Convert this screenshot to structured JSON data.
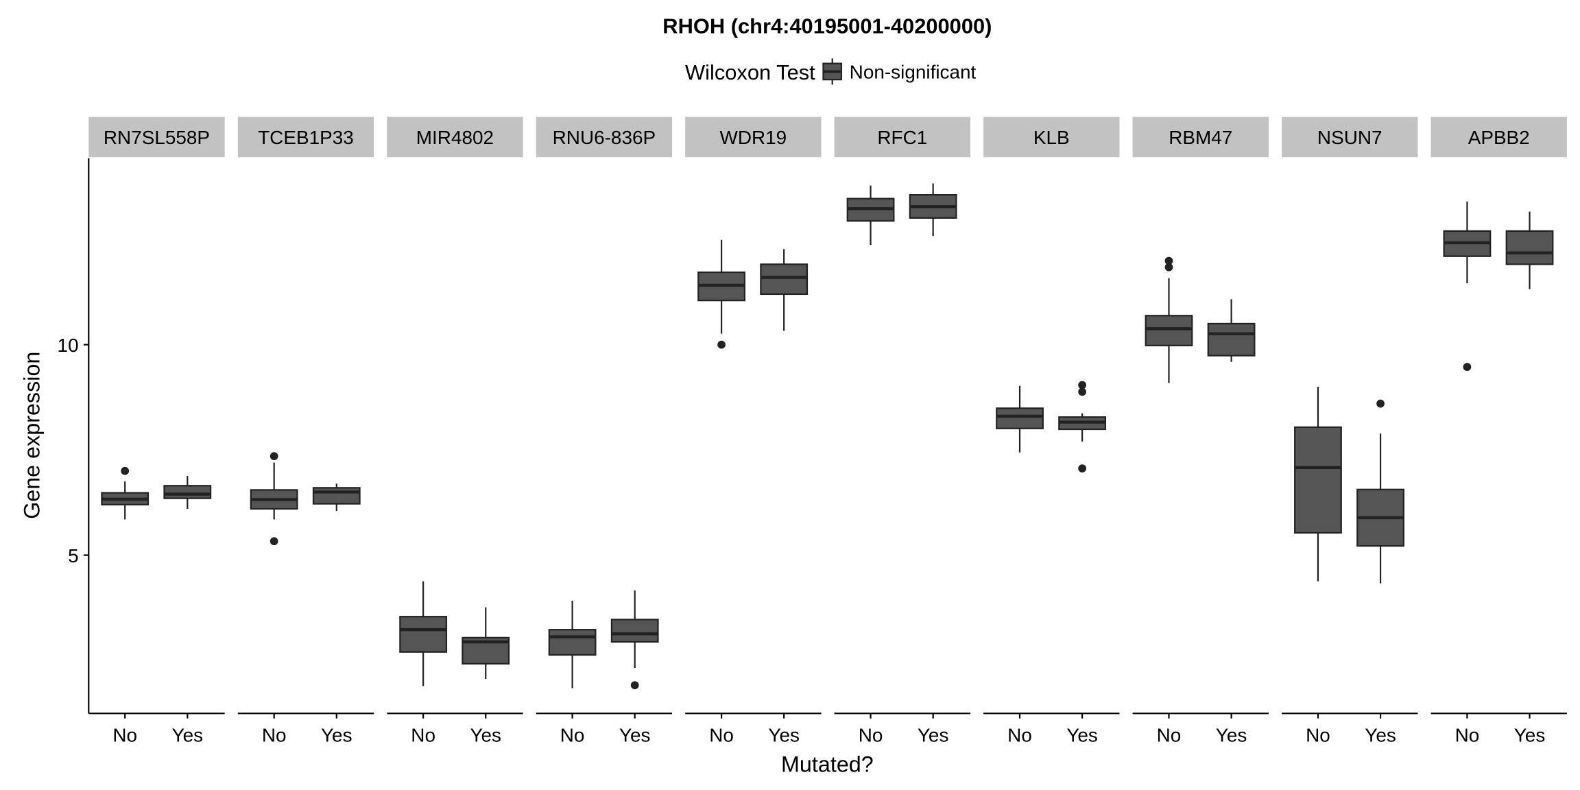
{
  "chart_data": {
    "type": "boxplot",
    "title": "RHOH (chr4:40195001-40200000)",
    "xlabel": "Mutated?",
    "ylabel": "Gene expression",
    "yticks": [
      5,
      10
    ],
    "ylim": [
      1.24,
      14.43
    ],
    "legend": {
      "title": "Wilcoxon Test",
      "entries": [
        "Non-significant"
      ],
      "placement": "top"
    },
    "categories": [
      "No",
      "Yes"
    ],
    "colors": {
      "box_fill": "#555555",
      "box_stroke": "#222222",
      "strip_bg": "#c2c2c2"
    },
    "panels": [
      {
        "label": "RN7SL558P",
        "boxes": [
          {
            "x": "No",
            "lower": 5.85,
            "q1": 6.2,
            "median": 6.33,
            "q3": 6.48,
            "upper": 6.75,
            "outliers": [
              7.0
            ]
          },
          {
            "x": "Yes",
            "lower": 6.1,
            "q1": 6.35,
            "median": 6.45,
            "q3": 6.65,
            "upper": 6.88,
            "outliers": []
          }
        ]
      },
      {
        "label": "TCEB1P33",
        "boxes": [
          {
            "x": "No",
            "lower": 5.85,
            "q1": 6.1,
            "median": 6.32,
            "q3": 6.55,
            "upper": 7.2,
            "outliers": [
              7.35,
              5.33
            ]
          },
          {
            "x": "Yes",
            "lower": 6.05,
            "q1": 6.22,
            "median": 6.5,
            "q3": 6.6,
            "upper": 6.7,
            "outliers": []
          }
        ]
      },
      {
        "label": "MIR4802",
        "boxes": [
          {
            "x": "No",
            "lower": 1.89,
            "q1": 2.7,
            "median": 3.23,
            "q3": 3.54,
            "upper": 4.38,
            "outliers": []
          },
          {
            "x": "Yes",
            "lower": 2.06,
            "q1": 2.42,
            "median": 2.94,
            "q3": 3.04,
            "upper": 3.76,
            "outliers": []
          }
        ]
      },
      {
        "label": "RNU6-836P",
        "boxes": [
          {
            "x": "No",
            "lower": 1.84,
            "q1": 2.63,
            "median": 3.06,
            "q3": 3.23,
            "upper": 3.92,
            "outliers": []
          },
          {
            "x": "Yes",
            "lower": 2.32,
            "q1": 2.94,
            "median": 3.13,
            "q3": 3.47,
            "upper": 4.16,
            "outliers": [
              1.91
            ]
          }
        ]
      },
      {
        "label": "WDR19",
        "boxes": [
          {
            "x": "No",
            "lower": 10.26,
            "q1": 11.05,
            "median": 11.41,
            "q3": 11.72,
            "upper": 12.49,
            "outliers": [
              10.0
            ]
          },
          {
            "x": "Yes",
            "lower": 10.33,
            "q1": 11.2,
            "median": 11.6,
            "q3": 11.91,
            "upper": 12.27,
            "outliers": []
          }
        ]
      },
      {
        "label": "RFC1",
        "boxes": [
          {
            "x": "No",
            "lower": 12.37,
            "q1": 12.94,
            "median": 13.23,
            "q3": 13.47,
            "upper": 13.78,
            "outliers": []
          },
          {
            "x": "Yes",
            "lower": 12.58,
            "q1": 13.01,
            "median": 13.28,
            "q3": 13.56,
            "upper": 13.83,
            "outliers": []
          }
        ]
      },
      {
        "label": "KLB",
        "boxes": [
          {
            "x": "No",
            "lower": 7.44,
            "q1": 8.01,
            "median": 8.3,
            "q3": 8.49,
            "upper": 9.02,
            "outliers": []
          },
          {
            "x": "Yes",
            "lower": 7.7,
            "q1": 7.99,
            "median": 8.16,
            "q3": 8.28,
            "upper": 8.37,
            "outliers": [
              9.04,
              8.88,
              7.06
            ]
          }
        ]
      },
      {
        "label": "RBM47",
        "boxes": [
          {
            "x": "No",
            "lower": 9.09,
            "q1": 9.98,
            "median": 10.38,
            "q3": 10.69,
            "upper": 11.58,
            "outliers": [
              11.99,
              11.84
            ]
          },
          {
            "x": "Yes",
            "lower": 9.59,
            "q1": 9.74,
            "median": 10.26,
            "q3": 10.5,
            "upper": 11.08,
            "outliers": []
          }
        ]
      },
      {
        "label": "NSUN7",
        "boxes": [
          {
            "x": "No",
            "lower": 4.38,
            "q1": 5.53,
            "median": 7.08,
            "q3": 8.04,
            "upper": 9.0,
            "outliers": []
          },
          {
            "x": "Yes",
            "lower": 4.33,
            "q1": 5.22,
            "median": 5.89,
            "q3": 6.56,
            "upper": 7.89,
            "outliers": [
              8.6
            ]
          }
        ]
      },
      {
        "label": "APBB2",
        "boxes": [
          {
            "x": "No",
            "lower": 11.46,
            "q1": 12.1,
            "median": 12.42,
            "q3": 12.7,
            "upper": 13.4,
            "outliers": [
              9.47
            ]
          },
          {
            "x": "Yes",
            "lower": 11.32,
            "q1": 11.91,
            "median": 12.18,
            "q3": 12.7,
            "upper": 13.16,
            "outliers": []
          }
        ]
      }
    ]
  }
}
